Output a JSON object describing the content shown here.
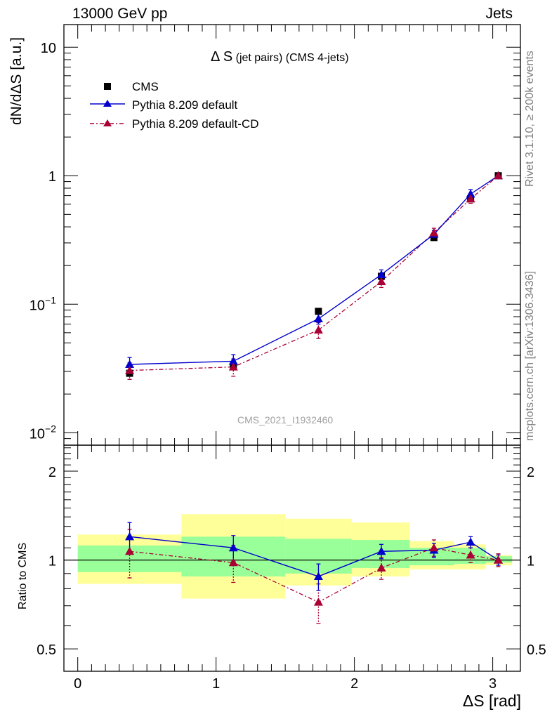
{
  "header": {
    "left": "13000 GeV pp",
    "right": "Jets"
  },
  "side_labels": {
    "rivet": "Rivet 3.1.10, ≥ 200k events",
    "mcplots": "mcplots.cern.ch [arXiv:1306.3436]"
  },
  "watermark": "CMS_2021_I1932460",
  "title": {
    "main": "Δ S",
    "detail": "(jet pairs) (CMS 4-jets)"
  },
  "colors": {
    "data": "#000000",
    "default": "#0000cc",
    "cd": "#aa0033",
    "band_inner": "#99ff99",
    "band_outer": "#ffff99"
  },
  "chart_data": [
    {
      "type": "scatter",
      "panel": "main",
      "ylabel": "dN/dΔS [a.u.]",
      "yscale": "log",
      "ylim": [
        0.008,
        15
      ],
      "xlim": [
        -0.1,
        3.2
      ],
      "yticks": [
        {
          "v": 10,
          "base": "10",
          "exp": ""
        },
        {
          "v": 1,
          "base": "1",
          "exp": ""
        },
        {
          "v": 0.1,
          "base": "10",
          "exp": "−1"
        },
        {
          "v": 0.01,
          "base": "10",
          "exp": "−2"
        }
      ],
      "legend": [
        "CMS",
        "Pythia 8.209 default",
        "Pythia 8.209 default-CD"
      ],
      "legend_position": "top-left",
      "series": [
        {
          "name": "CMS",
          "style": "square",
          "x": [
            0.375,
            1.125,
            1.74,
            2.195,
            2.575,
            2.84,
            3.04
          ],
          "y": [
            0.029,
            0.033,
            0.088,
            0.165,
            0.33,
            0.66,
            1.0
          ]
        },
        {
          "name": "Pythia 8.209 default",
          "style": "triangle-solid",
          "x": [
            0.375,
            1.125,
            1.74,
            2.195,
            2.575,
            2.84,
            3.04
          ],
          "y": [
            0.034,
            0.036,
            0.077,
            0.17,
            0.35,
            0.72,
            1.0
          ],
          "err": [
            0.0045,
            0.0045,
            0.007,
            0.015,
            0.025,
            0.06,
            0.04
          ]
        },
        {
          "name": "Pythia 8.209 default-CD",
          "style": "triangle-dashdot",
          "x": [
            0.375,
            1.125,
            1.74,
            2.195,
            2.575,
            2.84,
            3.04
          ],
          "y": [
            0.0305,
            0.0325,
            0.063,
            0.15,
            0.36,
            0.66,
            1.0
          ],
          "err": [
            0.0045,
            0.005,
            0.009,
            0.015,
            0.03,
            0.05,
            0.04
          ]
        }
      ]
    },
    {
      "type": "scatter",
      "panel": "ratio",
      "ylabel": "Ratio to CMS",
      "xlabel": "ΔS [rad]",
      "yscale": "log",
      "ylim": [
        0.42,
        2.45
      ],
      "xlim": [
        -0.1,
        3.2
      ],
      "yticks": [
        {
          "v": 2,
          "label": "2"
        },
        {
          "v": 1,
          "label": "1"
        },
        {
          "v": 0.5,
          "label": "0.5"
        }
      ],
      "xticks": [
        {
          "v": 0,
          "label": "0"
        },
        {
          "v": 1,
          "label": "1"
        },
        {
          "v": 2,
          "label": "2"
        },
        {
          "v": 3,
          "label": "3"
        }
      ],
      "bands": [
        {
          "x0": 0.0,
          "x1": 0.75,
          "inner": [
            0.91,
            1.12
          ],
          "outer": [
            0.83,
            1.22
          ]
        },
        {
          "x0": 0.75,
          "x1": 1.5,
          "inner": [
            0.88,
            1.2
          ],
          "outer": [
            0.74,
            1.43
          ]
        },
        {
          "x0": 1.5,
          "x1": 1.98,
          "inner": [
            0.9,
            1.18
          ],
          "outer": [
            0.82,
            1.38
          ]
        },
        {
          "x0": 1.98,
          "x1": 2.4,
          "inner": [
            0.94,
            1.17
          ],
          "outer": [
            0.88,
            1.34
          ]
        },
        {
          "x0": 2.4,
          "x1": 2.72,
          "inner": [
            0.96,
            1.1
          ],
          "outer": [
            0.93,
            1.16
          ]
        },
        {
          "x0": 2.72,
          "x1": 2.95,
          "inner": [
            0.97,
            1.1
          ],
          "outer": [
            0.93,
            1.13
          ]
        },
        {
          "x0": 2.95,
          "x1": 3.14,
          "inner": [
            0.98,
            1.03
          ],
          "outer": [
            0.96,
            1.04
          ]
        }
      ],
      "series": [
        {
          "name": "Pythia 8.209 default",
          "x": [
            0.375,
            1.125,
            1.74,
            2.195,
            2.575,
            2.84,
            3.04
          ],
          "y": [
            1.2,
            1.1,
            0.88,
            1.07,
            1.08,
            1.15,
            1.0
          ],
          "err": [
            0.14,
            0.11,
            0.09,
            0.06,
            0.06,
            0.05,
            0.04
          ]
        },
        {
          "name": "Pythia 8.209 default-CD",
          "x": [
            0.375,
            1.125,
            1.74,
            2.195,
            2.575,
            2.84,
            3.04
          ],
          "y": [
            1.07,
            0.98,
            0.72,
            0.94,
            1.1,
            1.04,
            1.0
          ],
          "err": [
            0.2,
            0.14,
            0.11,
            0.08,
            0.07,
            0.06,
            0.05
          ]
        }
      ]
    }
  ]
}
